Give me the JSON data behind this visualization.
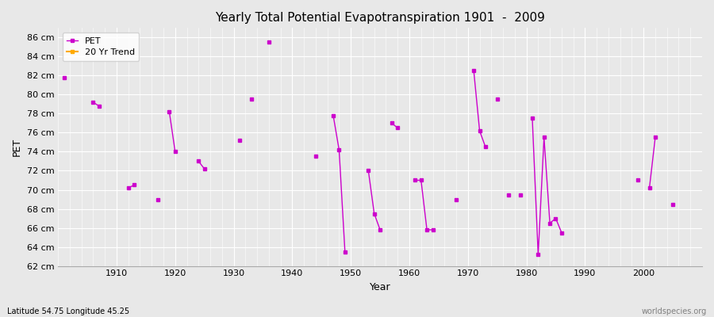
{
  "title": "Yearly Total Potential Evapotranspiration 1901  -  2009",
  "xlabel": "Year",
  "ylabel": "PET",
  "footnote_left": "Latitude 54.75 Longitude 45.25",
  "footnote_right": "worldspecies.org",
  "ylim": [
    62,
    87
  ],
  "xlim": [
    1900,
    2010
  ],
  "ytick_step": 2,
  "background_color": "#e8e8e8",
  "plot_bg_color": "#e8e8e8",
  "grid_color": "#ffffff",
  "line_color": "#cc00cc",
  "trend_color": "#ffaa00",
  "legend_labels": [
    "PET",
    "20 Yr Trend"
  ],
  "data": {
    "1901": 81.8,
    "1906": 79.2,
    "1907": 78.8,
    "1912": 70.2,
    "1913": 70.5,
    "1917": 69.0,
    "1919": 78.2,
    "1920": 74.0,
    "1924": 73.0,
    "1925": 72.2,
    "1931": 75.2,
    "1933": 79.5,
    "1936": 85.5,
    "1944": 73.5,
    "1947": 77.8,
    "1948": 74.2,
    "1949": 63.5,
    "1953": 72.0,
    "1954": 67.5,
    "1955": 65.8,
    "1957": 77.0,
    "1958": 76.5,
    "1961": 71.0,
    "1962": 71.0,
    "1963": 65.8,
    "1964": 65.8,
    "1968": 69.0,
    "1971": 82.5,
    "1972": 76.2,
    "1973": 74.5,
    "1975": 79.5,
    "1977": 69.5,
    "1979": 69.5,
    "1981": 77.5,
    "1982": 63.2,
    "1983": 75.5,
    "1984": 66.5,
    "1985": 67.0,
    "1986": 65.5,
    "1999": 71.0,
    "2001": 70.2,
    "2002": 75.5,
    "2005": 68.5
  }
}
